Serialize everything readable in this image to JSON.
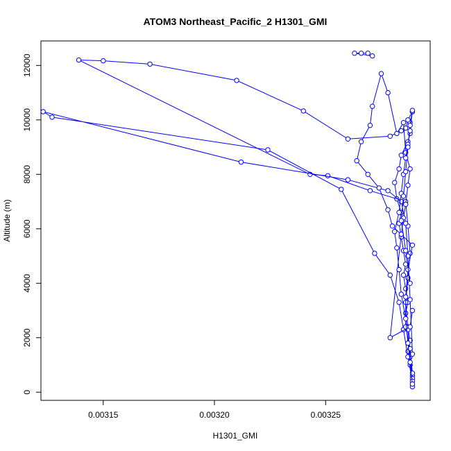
{
  "chart_data": {
    "type": "line",
    "title": "ATOM3 Northeast_Pacific_2 H1301_GMI",
    "xlabel": "H1301_GMI",
    "ylabel": "Altitude (m)",
    "xlim": [
      0.003122,
      0.003297
    ],
    "ylim": [
      -300,
      12900
    ],
    "x_ticks": [
      {
        "value": 0.00315,
        "label": "0.00315"
      },
      {
        "value": 0.0032,
        "label": "0.00320"
      },
      {
        "value": 0.00325,
        "label": "0.00325"
      }
    ],
    "y_ticks": [
      {
        "value": 0,
        "label": "0"
      },
      {
        "value": 2000,
        "label": "2000"
      },
      {
        "value": 4000,
        "label": "4000"
      },
      {
        "value": 6000,
        "label": "6000"
      },
      {
        "value": 8000,
        "label": "8000"
      },
      {
        "value": 10000,
        "label": "10000"
      },
      {
        "value": 12000,
        "label": "12000"
      }
    ],
    "grid": false,
    "series_color": "#0000ff",
    "series": [
      {
        "x": [
          0.003289,
          0.003289,
          0.003288,
          0.003287,
          0.003288,
          0.003287,
          0.003286,
          0.003287,
          0.003286,
          0.003285,
          0.003286,
          0.003285,
          0.003284,
          0.003283,
          0.003284,
          0.003282,
          0.003281,
          0.003283,
          0.003284,
          0.003287,
          0.003288,
          0.003288,
          0.003289
        ],
        "y": [
          200,
          600,
          1000,
          1500,
          1900,
          2400,
          2900,
          3300,
          3800,
          4300,
          4700,
          5200,
          5700,
          6200,
          6600,
          7100,
          7700,
          8200,
          8700,
          9200,
          9500,
          9900,
          10300
        ]
      },
      {
        "x": [
          0.003289,
          0.003287,
          0.003286,
          0.003284,
          0.003279,
          0.00326,
          0.00324,
          0.00321,
          0.003171,
          0.00315,
          0.003139,
          0.003243,
          0.003251,
          0.00327,
          0.003286,
          0.003287,
          0.003288,
          0.003287,
          0.003286,
          0.003287,
          0.003288,
          0.003289
        ],
        "y": [
          10300,
          10000,
          9700,
          9600,
          9400,
          9300,
          10330,
          11450,
          12050,
          12170,
          12200,
          8000,
          7950,
          7400,
          7000,
          6100,
          5100,
          4200,
          3300,
          2300,
          1300,
          500
        ]
      },
      {
        "x": [
          0.003289,
          0.003287,
          0.003285,
          0.003283,
          0.003279,
          0.003272,
          0.003257,
          0.003224,
          0.003127,
          0.003123,
          0.003212,
          0.00326,
          0.003278,
          0.003284,
          0.003286,
          0.003287,
          0.003288,
          0.003289
        ],
        "y": [
          400,
          1300,
          2300,
          3300,
          4300,
          5100,
          7450,
          8900,
          10100,
          10300,
          8450,
          7800,
          7400,
          7000,
          6200,
          5000,
          3400,
          1400
        ]
      },
      {
        "x": [
          0.003289,
          0.003288,
          0.003286,
          0.003286,
          0.003287,
          0.003289,
          0.00328,
          0.003278,
          0.003274,
          0.003269,
          0.003264,
          0.003266,
          0.00327,
          0.003271,
          0.003275,
          0.003278,
          0.003282,
          0.003285,
          0.003286,
          0.003288,
          0.003287,
          0.003286,
          0.003285,
          0.003284,
          0.003279,
          0.003288,
          0.003289
        ],
        "y": [
          700,
          1600,
          2400,
          3500,
          4500,
          5400,
          6100,
          6700,
          7500,
          8000,
          8500,
          9200,
          9800,
          10500,
          11700,
          11000,
          9500,
          9900,
          8800,
          8200,
          7600,
          6900,
          6400,
          5800,
          2000,
          2400,
          3000
        ]
      },
      {
        "x": [
          0.003289,
          0.003288,
          0.003287,
          0.003286,
          0.003284,
          0.003283,
          0.003282,
          0.003281,
          0.003283,
          0.003284,
          0.003285,
          0.003286,
          0.003287,
          0.003288,
          0.003289,
          0.003288,
          0.003287,
          0.003286,
          0.003285,
          0.003284,
          0.003286,
          0.003288
        ],
        "y": [
          300,
          1100,
          1800,
          2700,
          3600,
          4500,
          5300,
          5900,
          6600,
          7300,
          8000,
          8600,
          9100,
          9600,
          10350,
          9800,
          9000,
          8100,
          7200,
          6300,
          5200,
          4000
        ]
      },
      {
        "x": [
          0.003269,
          0.003266,
          0.003263,
          0.003271
        ],
        "y": [
          12450,
          12450,
          12450,
          12350
        ]
      }
    ]
  }
}
